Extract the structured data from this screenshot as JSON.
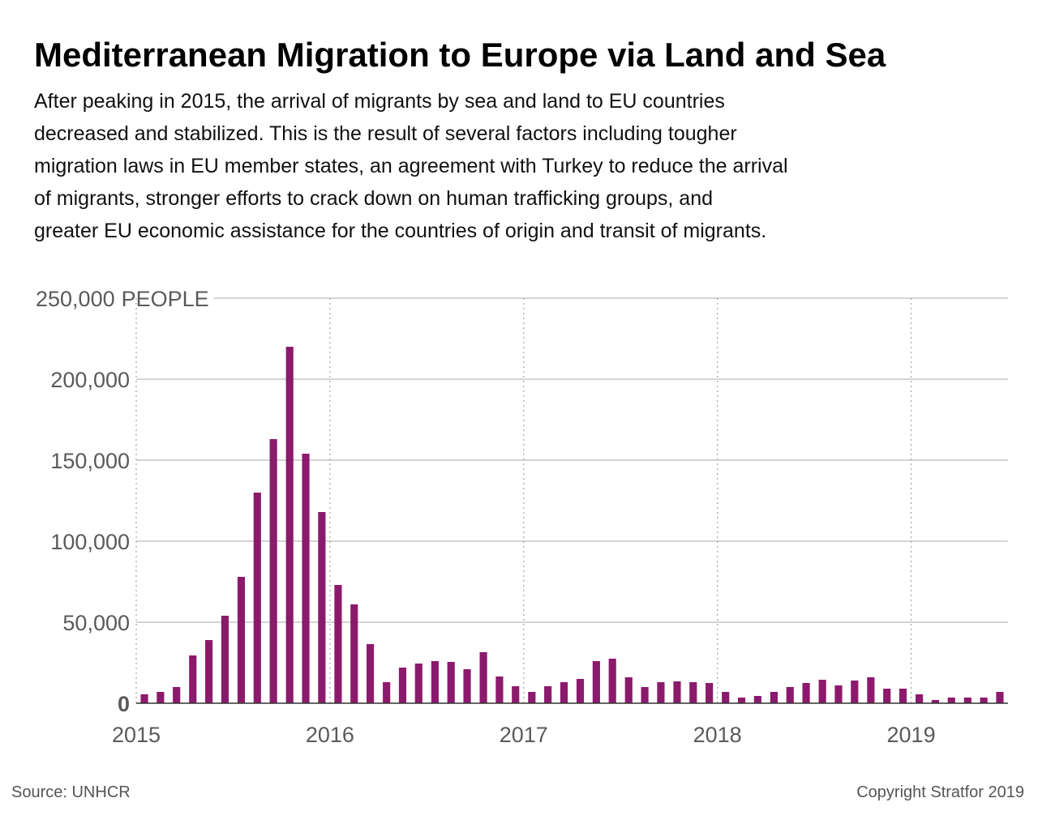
{
  "chart_data": {
    "type": "bar",
    "title": "Mediterranean Migration to Europe via Land and Sea",
    "subtitle": [
      "After peaking in 2015, the arrival of migrants by sea and land to EU countries",
      "decreased and stabilized. This is the result of several factors including tougher",
      "migration laws in EU member states, an agreement with Turkey to reduce the arrival",
      "of migrants, stronger efforts to crack down on human trafficking groups, and",
      "greater EU economic assistance for the countries of origin and transit of migrants."
    ],
    "y_label": "PEOPLE",
    "source": "Source: UNHCR",
    "copyright": "Copyright Stratfor 2019",
    "color": "#8c1a6c",
    "grid": true,
    "xlim": [
      2015,
      2019.5
    ],
    "xticks": [
      2015,
      2016,
      2017,
      2018,
      2019
    ],
    "ylim": [
      0,
      250000
    ],
    "yticks": [
      0,
      {
        "value": 50000,
        "label": "50,000"
      },
      {
        "value": 100000,
        "label": "100,000"
      },
      {
        "value": 150000,
        "label": "150,000"
      },
      {
        "value": 200000,
        "label": "200,000"
      },
      {
        "value": 250000,
        "label": "250,000"
      }
    ],
    "x": [
      2015.042,
      2015.125,
      2015.208,
      2015.292,
      2015.375,
      2015.458,
      2015.542,
      2015.625,
      2015.708,
      2015.792,
      2015.875,
      2015.958,
      2016.042,
      2016.125,
      2016.208,
      2016.292,
      2016.375,
      2016.458,
      2016.542,
      2016.625,
      2016.708,
      2016.792,
      2016.875,
      2016.958,
      2017.042,
      2017.125,
      2017.208,
      2017.292,
      2017.375,
      2017.458,
      2017.542,
      2017.625,
      2017.708,
      2017.792,
      2017.875,
      2017.958,
      2018.042,
      2018.125,
      2018.208,
      2018.292,
      2018.375,
      2018.458,
      2018.542,
      2018.625,
      2018.708,
      2018.792,
      2018.875,
      2018.958,
      2019.042,
      2019.125,
      2019.208,
      2019.292,
      2019.375,
      2019.458
    ],
    "values": [
      5500,
      7000,
      10000,
      29500,
      39000,
      54000,
      78000,
      130000,
      163000,
      220000,
      154000,
      118000,
      73000,
      61000,
      36500,
      13000,
      22000,
      24500,
      26000,
      25500,
      21000,
      31500,
      16500,
      10500,
      7000,
      10500,
      13000,
      15000,
      26000,
      27500,
      16000,
      10000,
      13000,
      13500,
      13000,
      12500,
      7000,
      3500,
      4500,
      7000,
      10000,
      12500,
      14500,
      11000,
      14000,
      16000,
      9000,
      9000,
      5500,
      2000,
      3500,
      3500,
      3500,
      7000
    ]
  }
}
